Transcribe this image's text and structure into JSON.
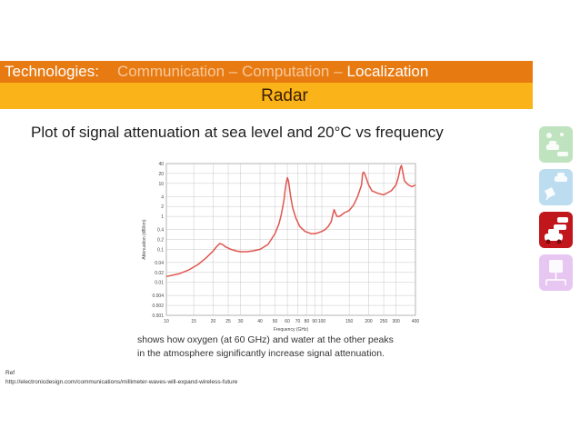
{
  "header": {
    "technologies_label": "Technologies:",
    "comm_comp": "Communication – Computation –",
    "localization": "Localization",
    "subtitle": "Radar"
  },
  "slide_title": "Plot of signal attenuation at sea level and 20°C vs frequency",
  "caption": {
    "line1": "shows how oxygen (at 60 GHz) and water at the other peaks",
    "line2": "in the atmosphere significantly increase signal attenuation."
  },
  "ref": {
    "label": "Ref",
    "url": "http://electronicdesign.com/communications/millimeter-waves-will-expand-wireless-future"
  },
  "side_icons": [
    {
      "name": "car-network-icon",
      "color": "#bfe3bf"
    },
    {
      "name": "satellite-car-icon",
      "color": "#bcdcf0"
    },
    {
      "name": "traffic-car-icon",
      "color": "#c0161c"
    },
    {
      "name": "processor-icon",
      "color": "#e7c6f2"
    }
  ],
  "colors": {
    "banner_dark": "#e87a12",
    "banner_light": "#fbb31a",
    "curve": "#e0554e"
  },
  "chart_data": {
    "type": "line",
    "xlabel": "Frequency (GHz)",
    "ylabel": "Attenuation (dB/km)",
    "x_scale": "log",
    "y_scale": "log",
    "xlim": [
      10,
      400
    ],
    "ylim": [
      0.001,
      40
    ],
    "x_ticks": [
      "10",
      "15",
      "20",
      "25",
      "30",
      "40",
      "50",
      "60",
      "70",
      "80",
      "90",
      "100",
      "150",
      "200",
      "250",
      "300",
      "400"
    ],
    "y_ticks": [
      "40",
      "20",
      "10",
      "4",
      "2",
      "1",
      "0.4",
      "0.2",
      "0.1",
      "0.04",
      "0.02",
      "0.01",
      "0.004",
      "0.002",
      "0.001"
    ],
    "grid": true,
    "series": [
      {
        "x": [
          10,
          12,
          14,
          16,
          18,
          20,
          21,
          22,
          23,
          24,
          26,
          28,
          30,
          33,
          36,
          40,
          45,
          50,
          53,
          55,
          57,
          58,
          59,
          60,
          61,
          62,
          63,
          65,
          68,
          72,
          78,
          85,
          90,
          95,
          100,
          105,
          110,
          115,
          118,
          120,
          122,
          125,
          130,
          140,
          150,
          160,
          170,
          180,
          183,
          186,
          190,
          200,
          210,
          230,
          250,
          280,
          300,
          310,
          320,
          325,
          330,
          340,
          360,
          380,
          400
        ],
        "y": [
          0.015,
          0.018,
          0.024,
          0.035,
          0.055,
          0.09,
          0.12,
          0.15,
          0.14,
          0.12,
          0.1,
          0.09,
          0.085,
          0.085,
          0.09,
          0.1,
          0.14,
          0.3,
          0.6,
          1.2,
          3,
          6,
          10,
          15,
          12,
          7,
          4,
          1.8,
          0.9,
          0.5,
          0.35,
          0.3,
          0.3,
          0.32,
          0.35,
          0.4,
          0.5,
          0.7,
          1.2,
          1.6,
          1.3,
          1.0,
          1.0,
          1.3,
          1.5,
          2.2,
          4,
          9,
          20,
          22,
          18,
          9,
          6,
          5,
          4.5,
          6,
          9,
          15,
          30,
          35,
          25,
          12,
          9,
          8,
          9
        ]
      }
    ]
  }
}
